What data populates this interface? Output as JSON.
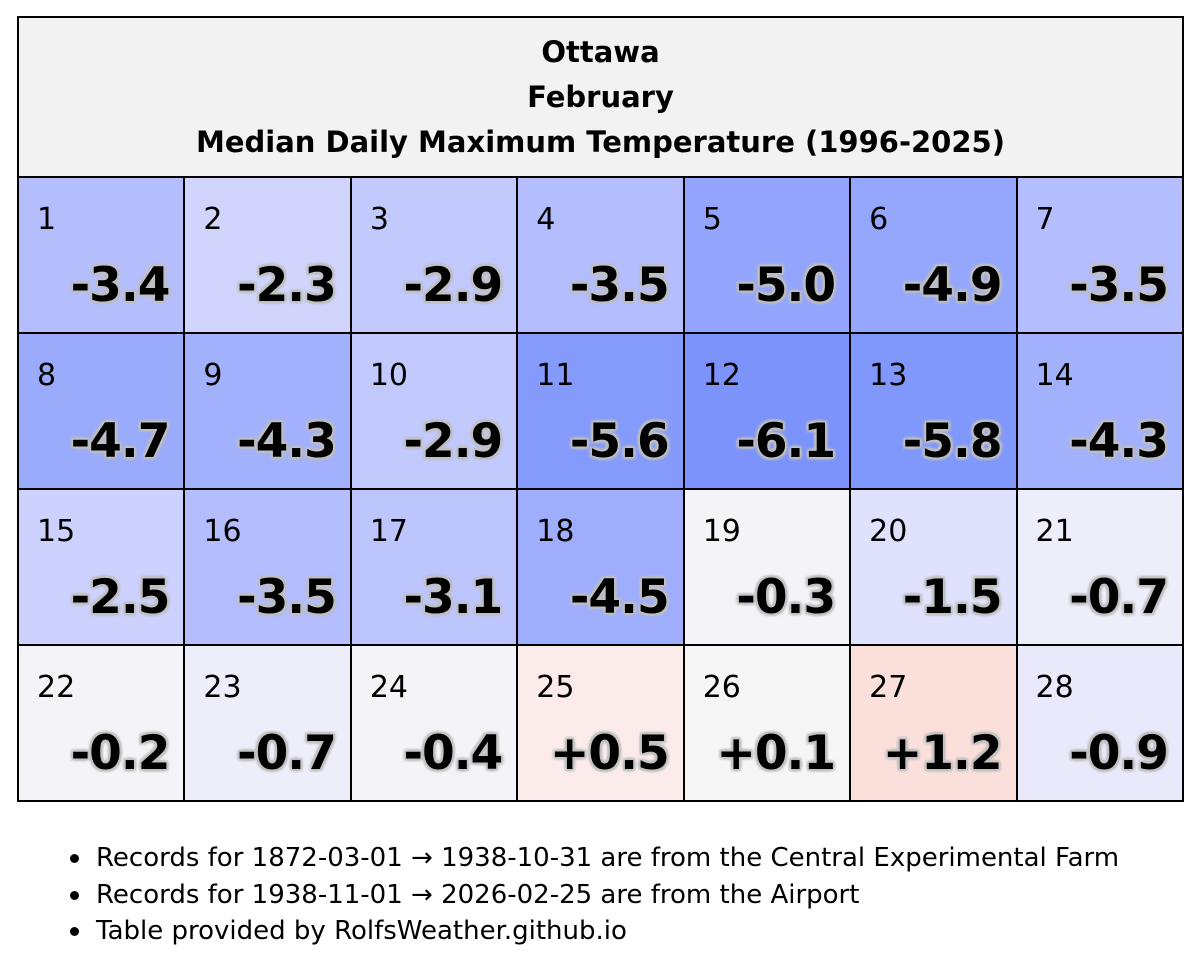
{
  "chart_data": {
    "type": "table",
    "title_lines": [
      "Ottawa",
      "February",
      "Median Daily Maximum Temperature (1996-2025)"
    ],
    "columns": 7,
    "days": [
      {
        "day": "1",
        "value": "-3.4",
        "color": "#b5befd"
      },
      {
        "day": "2",
        "value": "-2.3",
        "color": "#d1d5fd"
      },
      {
        "day": "3",
        "value": "-2.9",
        "color": "#c2c9fd"
      },
      {
        "day": "4",
        "value": "-3.5",
        "color": "#b4bdfd"
      },
      {
        "day": "5",
        "value": "-5.0",
        "color": "#93a5fc"
      },
      {
        "day": "6",
        "value": "-4.9",
        "color": "#95a7fc"
      },
      {
        "day": "7",
        "value": "-3.5",
        "color": "#b4bdfd"
      },
      {
        "day": "8",
        "value": "-4.7",
        "color": "#9aabfc"
      },
      {
        "day": "9",
        "value": "-4.3",
        "color": "#a2b1fc"
      },
      {
        "day": "10",
        "value": "-2.9",
        "color": "#c2c9fd"
      },
      {
        "day": "11",
        "value": "-5.6",
        "color": "#859bfb"
      },
      {
        "day": "12",
        "value": "-6.1",
        "color": "#7b93fb"
      },
      {
        "day": "13",
        "value": "-5.8",
        "color": "#8098fb"
      },
      {
        "day": "14",
        "value": "-4.3",
        "color": "#a2b1fc"
      },
      {
        "day": "15",
        "value": "-2.5",
        "color": "#ccd1fd"
      },
      {
        "day": "16",
        "value": "-3.5",
        "color": "#b4bdfd"
      },
      {
        "day": "17",
        "value": "-3.1",
        "color": "#bdc5fd"
      },
      {
        "day": "18",
        "value": "-4.5",
        "color": "#9eaefc"
      },
      {
        "day": "19",
        "value": "-0.3",
        "color": "#f4f4f8"
      },
      {
        "day": "20",
        "value": "-1.5",
        "color": "#e0e1fd"
      },
      {
        "day": "21",
        "value": "-0.7",
        "color": "#eeeefb"
      },
      {
        "day": "22",
        "value": "-0.2",
        "color": "#f4f4f8"
      },
      {
        "day": "23",
        "value": "-0.7",
        "color": "#eeeefb"
      },
      {
        "day": "24",
        "value": "-0.4",
        "color": "#f3f3f8"
      },
      {
        "day": "25",
        "value": "+0.5",
        "color": "#fbeceb"
      },
      {
        "day": "26",
        "value": "+0.1",
        "color": "#f7f6f6"
      },
      {
        "day": "27",
        "value": "+1.2",
        "color": "#fbdfda"
      },
      {
        "day": "28",
        "value": "-0.9",
        "color": "#e9e9fb"
      }
    ]
  },
  "notes": [
    "Records for 1872-03-01 → 1938-10-31 are from the Central Experimental Farm",
    "Records for 1938-11-01 → 2026-02-25 are from the Airport",
    "Table provided by RolfsWeather.github.io"
  ]
}
